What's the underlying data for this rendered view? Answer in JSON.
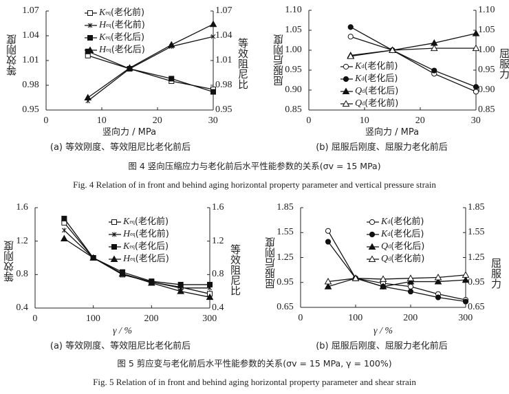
{
  "figure4": {
    "caption_cn": "图 4   竖向压缩应力与老化前后水平性能参数的关系(σv = 15 MPa)",
    "caption_en": "Fig. 4   Relation of in front and behind aging horizontal property parameter and vertical pressure strain"
  },
  "figure5": {
    "caption_cn": "图 5   剪应变与老化前后水平性能参数的关系(σv = 15 MPa,  γ = 100%)",
    "caption_en": "Fig. 5   Relation of in front and behind aging horizontal property parameter and shear strain"
  },
  "chart_data": [
    {
      "type": "line",
      "subtitle": "(a) 等效刚度、等效阻尼比老化前后",
      "xlabel": "竖向力 / MPa",
      "ylabel_left": "等效刚度",
      "ylabel_right": "等效阻尼比",
      "xlim": [
        0,
        30
      ],
      "xticks": [
        "0",
        "10",
        "20",
        "30"
      ],
      "ylim": [
        0.95,
        1.07
      ],
      "yticks": [
        "0.95",
        "0.98",
        "1.01",
        "1.04",
        "1.07"
      ],
      "legend_position": "top-center",
      "grid": false,
      "x": [
        7.5,
        15,
        22.5,
        30
      ],
      "series": [
        {
          "name": "Keq(老化前)",
          "sym": "K",
          "sub": "eq",
          "tag": "(老化前)",
          "marker": "open-square",
          "values": [
            1.016,
            1.0,
            0.985,
            0.975
          ]
        },
        {
          "name": "Heq(老化前)",
          "sym": "H",
          "sub": "eq",
          "tag": "(老化前)",
          "marker": "star",
          "values": [
            0.961,
            1.0,
            1.027,
            1.039
          ]
        },
        {
          "name": "Keq(老化后)",
          "sym": "K",
          "sub": "eq",
          "tag": "(老化后)",
          "marker": "filled-square",
          "values": [
            1.021,
            1.0,
            0.988,
            0.972
          ]
        },
        {
          "name": "Heq(老化后)",
          "sym": "H",
          "sub": "eq",
          "tag": "(老化后)",
          "marker": "filled-triangle",
          "values": [
            0.965,
            1.001,
            1.029,
            1.054
          ]
        }
      ]
    },
    {
      "type": "line",
      "subtitle": "(b) 屈服后刚度、屈服力老化前后",
      "xlabel": "竖向力 / MPa",
      "ylabel_left": "屈服后刚度",
      "ylabel_right": "屈服力",
      "xlim": [
        0,
        30
      ],
      "xticks": [
        "0",
        "10",
        "20",
        "30"
      ],
      "ylim": [
        0.85,
        1.1
      ],
      "yticks": [
        "0.85",
        "0.90",
        "0.95",
        "1.00",
        "1.05",
        "1.10"
      ],
      "legend_position": "center-left",
      "grid": false,
      "x": [
        7.5,
        15,
        22.5,
        30
      ],
      "series": [
        {
          "name": "Kd(老化前)",
          "sym": "K",
          "sub": "d",
          "tag": "(老化前)",
          "marker": "open-circle",
          "values": [
            1.034,
            1.0,
            0.941,
            0.896
          ]
        },
        {
          "name": "Kd(老化后)",
          "sym": "K",
          "sub": "d",
          "tag": "(老化后)",
          "marker": "filled-circle",
          "values": [
            1.058,
            1.0,
            0.949,
            0.908
          ]
        },
        {
          "name": "Qd(老化后)",
          "sym": "Q",
          "sub": "d",
          "tag": "(老化后)",
          "marker": "filled-triangle",
          "values": [
            0.987,
            1.0,
            1.018,
            1.042
          ]
        },
        {
          "name": "Qd(老化前)",
          "sym": "Q",
          "sub": "d",
          "tag": "(老化前)",
          "marker": "open-triangle",
          "values": [
            0.985,
            1.0,
            1.005,
            1.005
          ]
        }
      ]
    },
    {
      "type": "line",
      "subtitle": "(a) 等效刚度、等效阻尼比老化前后",
      "xlabel": "γ / %",
      "ylabel_left": "等效刚度",
      "ylabel_right": "等效阻尼比",
      "xlim": [
        0,
        300
      ],
      "xticks": [
        "0",
        "100",
        "200",
        "300"
      ],
      "ylim": [
        0.4,
        1.6
      ],
      "yticks": [
        "0.4",
        "0.8",
        "1.2",
        "1.6"
      ],
      "legend_position": "top-right",
      "grid": false,
      "x": [
        50,
        100,
        150,
        200,
        250,
        300
      ],
      "series": [
        {
          "name": "Keq(老化前)",
          "sym": "K",
          "sub": "eq",
          "tag": "(老化前)",
          "marker": "open-square",
          "values": [
            1.42,
            1.0,
            0.8,
            0.71,
            0.65,
            0.57
          ]
        },
        {
          "name": "Heq(老化前)",
          "sym": "H",
          "sub": "eq",
          "tag": "(老化前)",
          "marker": "star",
          "values": [
            1.33,
            1.0,
            0.81,
            0.71,
            0.64,
            0.64
          ]
        },
        {
          "name": "Keq(老化后)",
          "sym": "K",
          "sub": "eq",
          "tag": "(老化后)",
          "marker": "filled-square",
          "values": [
            1.47,
            1.0,
            0.83,
            0.72,
            0.68,
            0.68
          ]
        },
        {
          "name": "Heq(老化后)",
          "sym": "H",
          "sub": "eq",
          "tag": "(老化后)",
          "marker": "filled-triangle",
          "values": [
            1.23,
            1.0,
            0.81,
            0.7,
            0.6,
            0.53
          ]
        }
      ]
    },
    {
      "type": "line",
      "subtitle": "(b) 屈服后刚度、屈服力老化前后",
      "xlabel": "γ / %",
      "ylabel_left": "屈服后刚度",
      "ylabel_right": "屈服力",
      "xlim": [
        0,
        300
      ],
      "xticks": [
        "0",
        "100",
        "200",
        "300"
      ],
      "ylim": [
        0.65,
        1.85
      ],
      "yticks": [
        "0.65",
        "0.95",
        "1.25",
        "1.55",
        "1.85"
      ],
      "legend_position": "top-right",
      "grid": false,
      "x": [
        50,
        100,
        150,
        200,
        250,
        300
      ],
      "series": [
        {
          "name": "Kd(老化前)",
          "sym": "K",
          "sub": "d",
          "tag": "(老化前)",
          "marker": "open-circle",
          "values": [
            1.57,
            1.0,
            0.94,
            0.9,
            0.81,
            0.74
          ]
        },
        {
          "name": "Kd(老化后)",
          "sym": "K",
          "sub": "d",
          "tag": "(老化后)",
          "marker": "filled-circle",
          "values": [
            1.44,
            1.0,
            0.9,
            0.84,
            0.77,
            0.72
          ]
        },
        {
          "name": "Qd(老化后)",
          "sym": "Q",
          "sub": "d",
          "tag": "(老化后)",
          "marker": "filled-triangle",
          "values": [
            0.9,
            1.0,
            0.9,
            0.96,
            0.96,
            0.98
          ]
        },
        {
          "name": "Qd(老化前)",
          "sym": "Q",
          "sub": "d",
          "tag": "(老化前)",
          "marker": "open-triangle",
          "values": [
            0.96,
            1.0,
            0.99,
            1.0,
            1.01,
            1.04
          ]
        }
      ]
    }
  ]
}
